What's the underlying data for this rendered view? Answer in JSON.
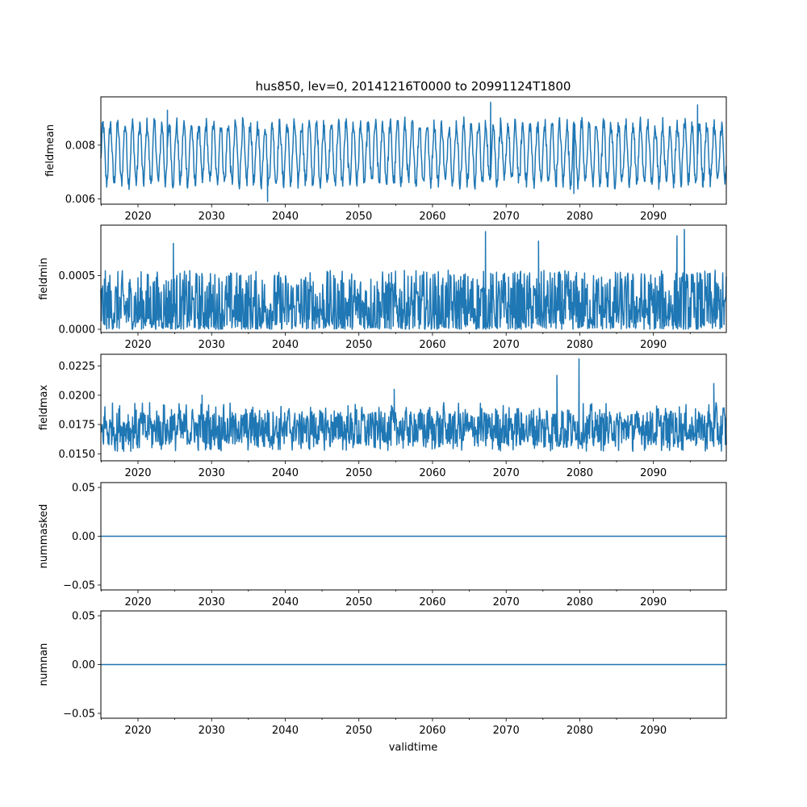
{
  "figure": {
    "title": "hus850, lev=0, 20141216T0000 to 20991124T1800",
    "xlabel": "validtime"
  },
  "chart_data": [
    {
      "type": "line",
      "ylabel": "fieldmean",
      "xlim": [
        2014.96,
        2099.9
      ],
      "ylim": [
        0.0058,
        0.0098
      ],
      "xticks": [
        2020,
        2030,
        2040,
        2050,
        2060,
        2070,
        2080,
        2090
      ],
      "xtick_labels": [
        "2020",
        "2030",
        "2040",
        "2050",
        "2060",
        "2070",
        "2080",
        "2090"
      ],
      "yticks": [
        0.006,
        0.008
      ],
      "ytick_labels": [
        "0.006",
        "0.008"
      ],
      "series": [
        {
          "color": "#1f77b4",
          "summary": {
            "low": 0.0065,
            "high": 0.0089,
            "mean": 0.0077
          },
          "peaks": [
            [
              2024.0,
              0.0093
            ],
            [
              2037.6,
              0.0059
            ],
            [
              2067.9,
              0.0096
            ],
            [
              2079.2,
              0.0062
            ],
            [
              2096.0,
              0.0095
            ]
          ]
        }
      ]
    },
    {
      "type": "line",
      "ylabel": "fieldmin",
      "xlim": [
        2014.96,
        2099.9
      ],
      "ylim": [
        -3e-05,
        0.00097
      ],
      "xticks": [
        2020,
        2030,
        2040,
        2050,
        2060,
        2070,
        2080,
        2090
      ],
      "xtick_labels": [
        "2020",
        "2030",
        "2040",
        "2050",
        "2060",
        "2070",
        "2080",
        "2090"
      ],
      "yticks": [
        0.0,
        0.0005
      ],
      "ytick_labels": [
        "0.0000",
        "0.0005"
      ],
      "series": [
        {
          "color": "#1f77b4",
          "summary": {
            "low": 0.0,
            "high": 0.00055,
            "mean": 0.00015
          },
          "peaks": [
            [
              2024.8,
              0.0008
            ],
            [
              2067.2,
              0.00091
            ],
            [
              2074.4,
              0.00082
            ],
            [
              2093.2,
              0.00087
            ],
            [
              2094.2,
              0.00093
            ]
          ]
        }
      ]
    },
    {
      "type": "line",
      "ylabel": "fieldmax",
      "xlim": [
        2014.96,
        2099.9
      ],
      "ylim": [
        0.0144,
        0.0235
      ],
      "xticks": [
        2020,
        2030,
        2040,
        2050,
        2060,
        2070,
        2080,
        2090
      ],
      "xtick_labels": [
        "2020",
        "2030",
        "2040",
        "2050",
        "2060",
        "2070",
        "2080",
        "2090"
      ],
      "yticks": [
        0.015,
        0.0175,
        0.02,
        0.0225
      ],
      "ytick_labels": [
        "0.0150",
        "0.0175",
        "0.0200",
        "0.0225"
      ],
      "series": [
        {
          "color": "#1f77b4",
          "summary": {
            "low": 0.0152,
            "high": 0.0192,
            "mean": 0.017
          },
          "peaks": [
            [
              2079.9,
              0.0231
            ],
            [
              2076.9,
              0.0217
            ],
            [
              2098.2,
              0.021
            ],
            [
              2028.7,
              0.02
            ],
            [
              2054.8,
              0.0205
            ]
          ]
        }
      ]
    },
    {
      "type": "line",
      "ylabel": "nummasked",
      "xlim": [
        2014.96,
        2099.9
      ],
      "ylim": [
        -0.055,
        0.055
      ],
      "xticks": [
        2020,
        2030,
        2040,
        2050,
        2060,
        2070,
        2080,
        2090
      ],
      "xtick_labels": [
        "2020",
        "2030",
        "2040",
        "2050",
        "2060",
        "2070",
        "2080",
        "2090"
      ],
      "yticks": [
        -0.05,
        0.0,
        0.05
      ],
      "ytick_labels": [
        "−0.05",
        "0.00",
        "0.05"
      ],
      "series": [
        {
          "color": "#1f77b4",
          "x": [
            2014.96,
            2099.9
          ],
          "y": [
            0,
            0
          ]
        }
      ]
    },
    {
      "type": "line",
      "ylabel": "numnan",
      "xlim": [
        2014.96,
        2099.9
      ],
      "ylim": [
        -0.055,
        0.055
      ],
      "xticks": [
        2020,
        2030,
        2040,
        2050,
        2060,
        2070,
        2080,
        2090
      ],
      "xtick_labels": [
        "2020",
        "2030",
        "2040",
        "2050",
        "2060",
        "2070",
        "2080",
        "2090"
      ],
      "yticks": [
        -0.05,
        0.0,
        0.05
      ],
      "ytick_labels": [
        "−0.05",
        "0.00",
        "0.05"
      ],
      "series": [
        {
          "color": "#1f77b4",
          "x": [
            2014.96,
            2099.9
          ],
          "y": [
            0,
            0
          ]
        }
      ]
    }
  ]
}
